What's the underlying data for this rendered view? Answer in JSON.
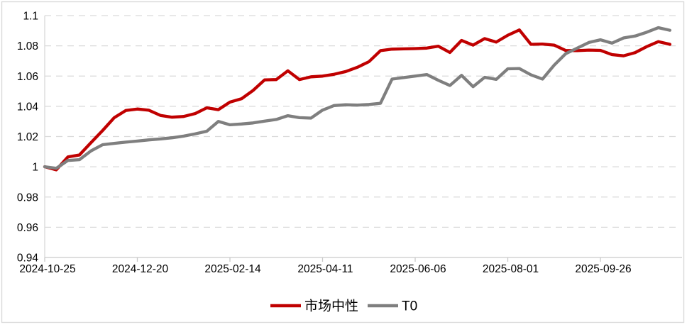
{
  "chart_data": {
    "type": "line",
    "title": "",
    "x_axis": {
      "tick_labels": [
        "2024-10-25",
        "2024-12-20",
        "2025-02-14",
        "2025-04-11",
        "2025-06-06",
        "2025-08-01",
        "2025-09-26"
      ],
      "points_per_tick": 8,
      "n_points": 55,
      "frequency": "weekly"
    },
    "y_axis": {
      "min": 0.94,
      "max": 1.1,
      "step": 0.02,
      "tick_labels_top_to_bottom": [
        "1.1",
        "1.08",
        "1.06",
        "1.04",
        "1.02",
        "1",
        "0.98",
        "0.96",
        "0.94"
      ]
    },
    "grid": {
      "horizontal": true,
      "style": "dashed",
      "color": "#D9D9D9"
    },
    "legend": {
      "position": "bottom-center",
      "entries": [
        "市场中性",
        "T0"
      ]
    },
    "series": [
      {
        "name": "市场中性",
        "color": "#C00000",
        "values": [
          1.0,
          0.998,
          1.0065,
          1.0078,
          1.016,
          1.024,
          1.0325,
          1.0372,
          1.0382,
          1.0374,
          1.034,
          1.0328,
          1.0333,
          1.0352,
          1.039,
          1.0378,
          1.0428,
          1.045,
          1.0505,
          1.0575,
          1.0577,
          1.0635,
          1.0577,
          1.0595,
          1.06,
          1.0612,
          1.063,
          1.0658,
          1.0695,
          1.0768,
          1.0778,
          1.078,
          1.0782,
          1.0785,
          1.0798,
          1.0756,
          1.0836,
          1.0805,
          1.0848,
          1.0825,
          1.087,
          1.0905,
          1.081,
          1.0812,
          1.0805,
          1.0769,
          1.0768,
          1.0772,
          1.077,
          1.0742,
          1.0734,
          1.0755,
          1.0795,
          1.0828,
          1.081
        ]
      },
      {
        "name": "T0",
        "color": "#7F7F7F",
        "values": [
          1.0,
          0.999,
          1.0042,
          1.0047,
          1.0105,
          1.0146,
          1.0155,
          1.0163,
          1.017,
          1.0178,
          1.0184,
          1.0192,
          1.0203,
          1.0218,
          1.0235,
          1.03,
          1.0278,
          1.0283,
          1.029,
          1.0302,
          1.0313,
          1.0338,
          1.0325,
          1.0322,
          1.0375,
          1.0405,
          1.041,
          1.0408,
          1.0412,
          1.042,
          1.058,
          1.059,
          1.06,
          1.061,
          1.0572,
          1.0538,
          1.0605,
          1.053,
          1.0592,
          1.0578,
          1.0648,
          1.065,
          1.0608,
          1.058,
          1.0672,
          1.0748,
          1.0785,
          1.0822,
          1.084,
          1.0818,
          1.0852,
          1.0865,
          1.089,
          1.092,
          1.0903
        ]
      }
    ]
  },
  "colors": {
    "background": "#FFFFFF",
    "chart_border": "#D9D9D9",
    "axis_line": "#C9C9C9",
    "gridline": "#D9D9D9",
    "label_text": "#000000"
  }
}
